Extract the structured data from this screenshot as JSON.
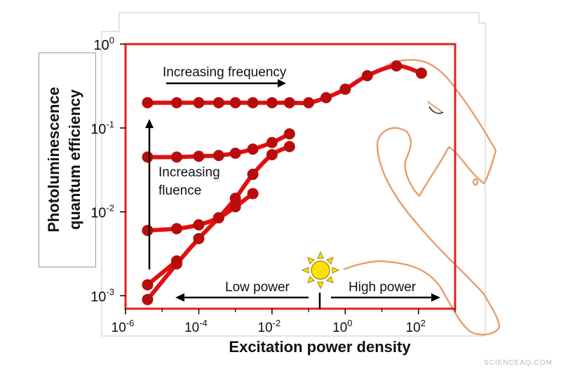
{
  "chart_data": {
    "type": "line",
    "title": "",
    "xlabel": "Excitation power density",
    "ylabel_lines": [
      "Photoluminescence",
      "quantum efficiency"
    ],
    "x_scale": "log",
    "y_scale": "log",
    "xlim": [
      1e-06,
      1000
    ],
    "ylim": [
      0.0007,
      1
    ],
    "x_ticks": [
      {
        "value": 1e-06,
        "base": "10",
        "exp": "-6"
      },
      {
        "value": 0.0001,
        "base": "10",
        "exp": "-4"
      },
      {
        "value": 0.01,
        "base": "10",
        "exp": "-2"
      },
      {
        "value": 1,
        "base": "10",
        "exp": "0"
      },
      {
        "value": 100,
        "base": "10",
        "exp": "2"
      }
    ],
    "y_ticks": [
      {
        "value": 0.001,
        "base": "10",
        "exp": "-3"
      },
      {
        "value": 0.01,
        "base": "10",
        "exp": "-2"
      },
      {
        "value": 0.1,
        "base": "10",
        "exp": "-1"
      },
      {
        "value": 1,
        "base": "10",
        "exp": "0"
      }
    ],
    "series": [
      {
        "x": [
          4e-06,
          2.5e-05,
          0.0001,
          0.00035,
          0.001,
          0.003,
          0.01,
          0.03,
          0.1,
          0.3,
          1,
          4,
          25,
          120
        ],
        "y": [
          0.2,
          0.2,
          0.2,
          0.2,
          0.2,
          0.2,
          0.2,
          0.2,
          0.2,
          0.23,
          0.29,
          0.42,
          0.55,
          0.45
        ]
      },
      {
        "x": [
          4e-06,
          2.5e-05,
          0.0001,
          0.00035,
          0.001,
          0.003,
          0.01,
          0.03
        ],
        "y": [
          0.045,
          0.045,
          0.046,
          0.047,
          0.05,
          0.056,
          0.067,
          0.085
        ]
      },
      {
        "x": [
          4e-06,
          2.5e-05,
          0.0001,
          0.00035,
          0.001,
          0.003
        ],
        "y": [
          0.006,
          0.0063,
          0.007,
          0.0085,
          0.0115,
          0.0165
        ]
      },
      {
        "x": [
          4e-06,
          2.5e-05,
          0.0001,
          0.00035,
          0.001,
          0.003,
          0.01,
          0.03
        ],
        "y": [
          0.0009,
          0.0024,
          0.0048,
          0.0085,
          0.0145,
          0.028,
          0.048,
          0.06
        ]
      },
      {
        "x": [
          4e-06,
          2.5e-05
        ],
        "y": [
          0.00135,
          0.0026
        ]
      }
    ],
    "annotations": {
      "increasing_frequency": "Increasing frequency",
      "increasing_fluence_line1": "Increasing",
      "increasing_fluence_line2": "fluence",
      "low_power": "Low power",
      "high_power": "High power"
    },
    "watermark": "SCIENCEAQ.COM",
    "colors": {
      "series": "#e01010",
      "marker": "#b80c0c",
      "frame": "#e02020",
      "horse": "#e8a070",
      "sun": "#ffe000"
    }
  }
}
